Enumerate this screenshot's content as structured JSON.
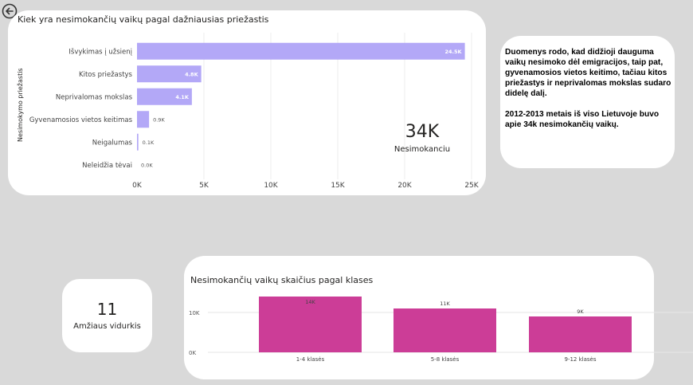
{
  "back_button": {
    "icon": "back-arrow-icon"
  },
  "reasons_chart": {
    "title": "Kiek yra nesimokančių vaikų pagal dažniausias priežastis",
    "ylabel": "Nesimokymo priežastis"
  },
  "kpi_total": {
    "value": "34K",
    "label": "Nesimokanciu"
  },
  "insight": {
    "paragraph1": "Duomenys rodo, kad didžioji dauguma vaikų nesimoko dėl emigracijos, taip pat, gyvenamosios vietos keitimo, tačiau kitos priežastys ir neprivalomas mokslas sudaro didelę dalį.",
    "paragraph2": "2012-2013 metais iš viso Lietuvoje buvo apie 34k nesimokančių vaikų."
  },
  "kpi_age": {
    "value": "11",
    "label": "Amžiaus vidurkis"
  },
  "grades_chart": {
    "title": "Nesimokančių vaikų skaičius pagal klases"
  },
  "colors": {
    "bar_purple": "#b3a8f7",
    "bar_magenta": "#cc3d97",
    "background": "#d9d9d9"
  },
  "chart_data": [
    {
      "type": "bar",
      "orientation": "horizontal",
      "title": "Kiek yra nesimokančių vaikų pagal dažniausias priežastis",
      "ylabel": "Nesimokymo priežastis",
      "xlabel": "",
      "categories": [
        "Išvykimas į užsienį",
        "Kitos priežastys",
        "Neprivalomas mokslas",
        "Gyvenamosios vietos keitimas",
        "Neigalumas",
        "Neleidžia tėvai"
      ],
      "values": [
        24500,
        4800,
        4100,
        900,
        100,
        0
      ],
      "data_labels": [
        "24.5K",
        "4.8K",
        "4.1K",
        "0.9K",
        "0.1K",
        "0.0K"
      ],
      "xlim": [
        0,
        25000
      ],
      "ticks": [
        0,
        5000,
        10000,
        15000,
        20000,
        25000
      ],
      "tick_labels": [
        "0K",
        "5K",
        "10K",
        "15K",
        "20K",
        "25K"
      ],
      "grid": true
    },
    {
      "type": "bar",
      "orientation": "vertical",
      "title": "Nesimokančių vaikų skaičius pagal klases",
      "xlabel": "",
      "ylabel": "",
      "categories": [
        "1-4 klasės",
        "5-8 klasės",
        "9-12 klasės"
      ],
      "values": [
        14000,
        11000,
        9000
      ],
      "data_labels": [
        "14K",
        "11K",
        "9K"
      ],
      "ylim": [
        0,
        14000
      ],
      "ticks": [
        0,
        10000
      ],
      "tick_labels": [
        "0K",
        "10K"
      ],
      "grid": true
    }
  ]
}
